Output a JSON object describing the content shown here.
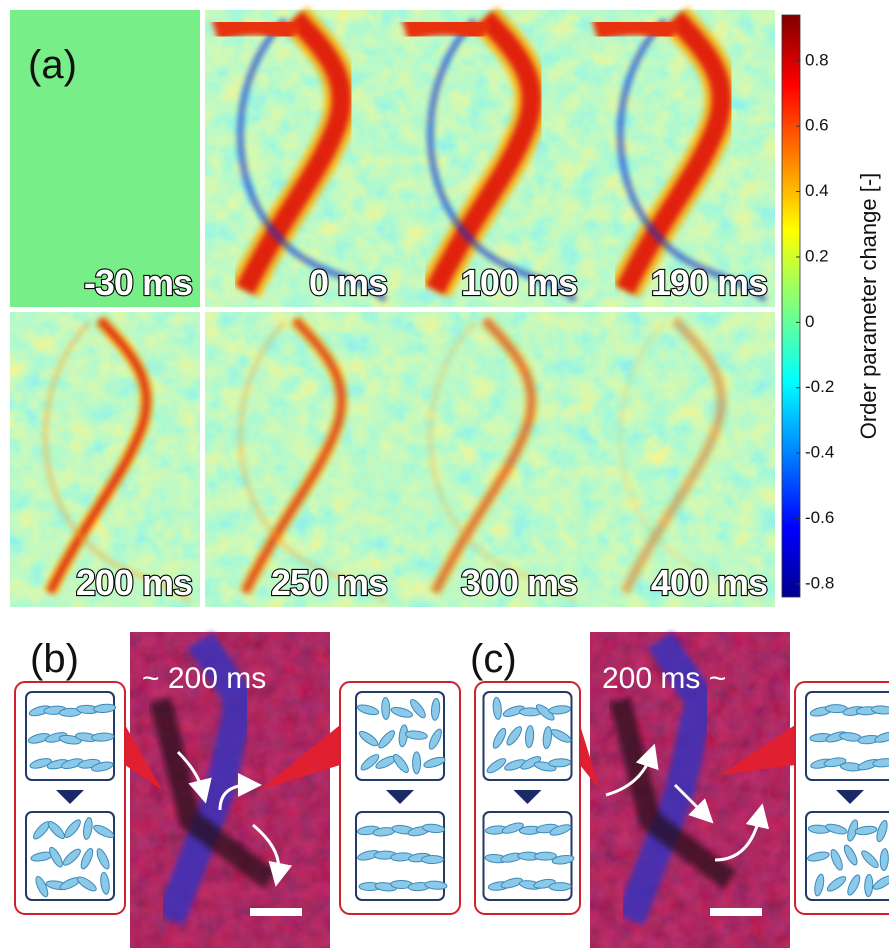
{
  "panel_a": {
    "label": "(a)",
    "frames": [
      "-30 ms",
      "0 ms",
      "100 ms",
      "190 ms",
      "200 ms",
      "250 ms",
      "300 ms",
      "400 ms"
    ]
  },
  "colorbar": {
    "label": "Order parameter change [-]",
    "lim": [
      -0.84,
      0.94
    ],
    "ticks": [
      0.8,
      0.6,
      0.4,
      0.2,
      0,
      -0.2,
      -0.4,
      -0.6,
      -0.8
    ]
  },
  "panel_b": {
    "label": "(b)",
    "time": "~ 200 ms"
  },
  "panel_c": {
    "label": "(c)",
    "time": "200 ms ~"
  }
}
